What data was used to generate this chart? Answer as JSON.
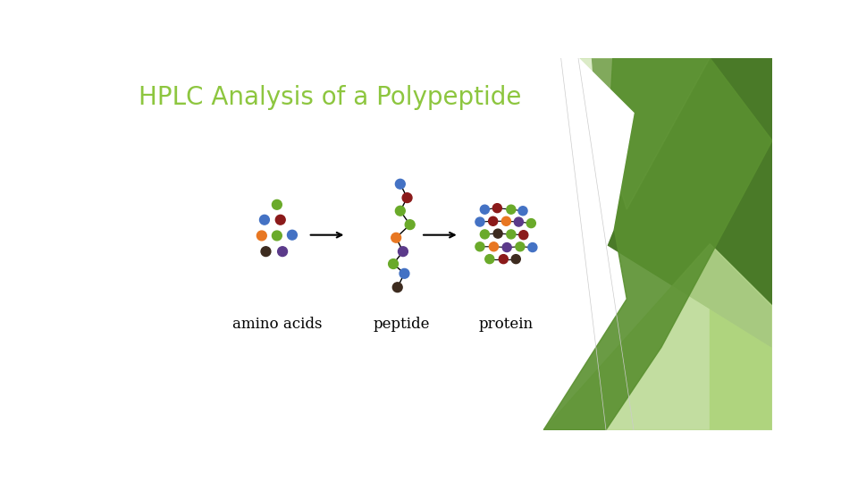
{
  "title": "HPLC Analysis of a Polypeptide",
  "title_color": "#8dc63f",
  "title_fontsize": 20,
  "background_color": "#ffffff",
  "label_amino": "amino acids",
  "label_peptide": "peptide",
  "label_protein": "protein",
  "green_color": "#6aaa2a",
  "blue_color": "#4472c4",
  "darkred_color": "#8b1a1a",
  "orange_color": "#e87722",
  "purple_color": "#5b3a8a",
  "darkbrown_color": "#3d2b1f",
  "bg_green_dark": "#4a7a28",
  "bg_green_mid": "#5a9030",
  "bg_green_light": "#7ab840",
  "bg_green_pale": "#b8d890",
  "bg_bright_green": "#80c020"
}
